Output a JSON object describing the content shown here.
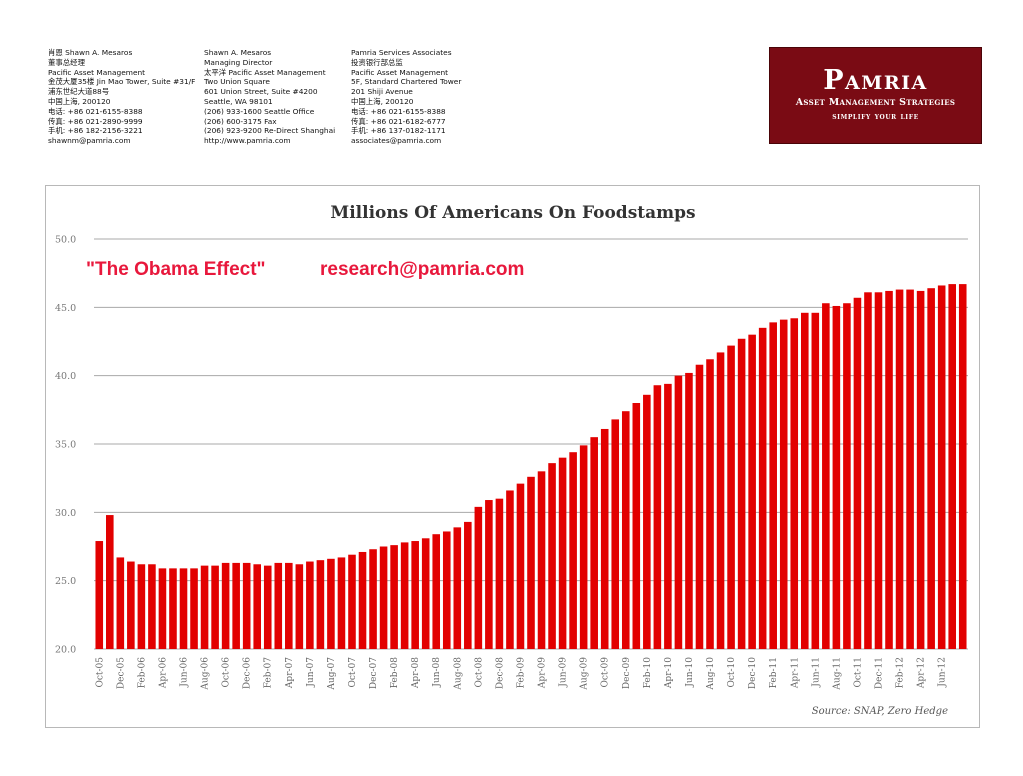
{
  "contacts": [
    {
      "lines": [
        "肖恩 Shawn A. Mesaros",
        "董事总经理",
        "Pacific Asset Management",
        "金茂大厦35楼 Jin Mao Tower, Suite #31/F",
        "浦东世纪大道88号",
        "中国上海, 200120",
        "电话: +86 021-6155-8388",
        "传真: +86 021-2890-9999",
        "手机: +86 182-2156-3221",
        "shawnm@pamria.com"
      ]
    },
    {
      "lines": [
        "Shawn A. Mesaros",
        "Managing Director",
        "太平洋 Pacific Asset Management",
        "Two Union Square",
        "601 Union Street, Suite #4200",
        "Seattle, WA 98101",
        "(206) 933-1600 Seattle Office",
        "(206) 600-3175 Fax",
        "(206) 923-9200 Re-Direct Shanghai",
        "http://www.pamria.com"
      ]
    },
    {
      "lines": [
        "Pamria Services Associates",
        "投资银行部总监",
        "Pacific Asset Management",
        "5F, Standard Chartered Tower",
        "201 Shiji Avenue",
        "中国上海, 200120",
        "电话: +86 021-6155-8388",
        "传真: +86 021-6182-6777",
        "手机: +86 137-0182-1171",
        "associates@pamria.com"
      ]
    }
  ],
  "logo": {
    "brand": "Pamria",
    "tagline1": "Asset Management Strategies",
    "tagline2": "simplify your life",
    "color": "#7a0b14"
  },
  "chart_data": {
    "type": "bar",
    "title": "Millions Of Americans On Foodstamps",
    "annotation_1": "\"The Obama Effect\"",
    "annotation_2": "research@pamria.com",
    "source": "Source: SNAP, Zero Hedge",
    "ylim": [
      20,
      50
    ],
    "yticks": [
      "20.0",
      "25.0",
      "30.0",
      "35.0",
      "40.0",
      "45.0",
      "50.0"
    ],
    "grid": true,
    "bar_color": "#e20000",
    "start": "Oct-05",
    "months": [
      "Oct-05",
      "Nov-05",
      "Dec-05",
      "Jan-06",
      "Feb-06",
      "Mar-06",
      "Apr-06",
      "May-06",
      "Jun-06",
      "Jul-06",
      "Aug-06",
      "Sep-06",
      "Oct-06",
      "Nov-06",
      "Dec-06",
      "Jan-07",
      "Feb-07",
      "Mar-07",
      "Apr-07",
      "May-07",
      "Jun-07",
      "Jul-07",
      "Aug-07",
      "Sep-07",
      "Oct-07",
      "Nov-07",
      "Dec-07",
      "Jan-08",
      "Feb-08",
      "Mar-08",
      "Apr-08",
      "May-08",
      "Jun-08",
      "Jul-08",
      "Aug-08",
      "Sep-08",
      "Oct-08",
      "Nov-08",
      "Dec-08",
      "Jan-09",
      "Feb-09",
      "Mar-09",
      "Apr-09",
      "May-09",
      "Jun-09",
      "Jul-09",
      "Aug-09",
      "Sep-09",
      "Oct-09",
      "Nov-09",
      "Dec-09",
      "Jan-10",
      "Feb-10",
      "Mar-10",
      "Apr-10",
      "May-10",
      "Jun-10",
      "Jul-10",
      "Aug-10",
      "Sep-10",
      "Oct-10",
      "Nov-10",
      "Dec-10",
      "Jan-11",
      "Feb-11",
      "Mar-11",
      "Apr-11",
      "May-11",
      "Jun-11",
      "Jul-11",
      "Aug-11",
      "Sep-11",
      "Oct-11",
      "Nov-11",
      "Dec-11",
      "Jan-12",
      "Feb-12",
      "Mar-12",
      "Apr-12",
      "May-12",
      "Jun-12",
      "Jul-12",
      "Aug-12"
    ],
    "values": [
      27.9,
      29.8,
      26.7,
      26.4,
      26.2,
      26.2,
      25.9,
      25.9,
      25.9,
      25.9,
      26.1,
      26.1,
      26.3,
      26.3,
      26.3,
      26.2,
      26.1,
      26.3,
      26.3,
      26.2,
      26.4,
      26.5,
      26.6,
      26.7,
      26.9,
      27.1,
      27.3,
      27.5,
      27.6,
      27.8,
      27.9,
      28.1,
      28.4,
      28.6,
      28.9,
      29.3,
      30.4,
      30.9,
      31.0,
      31.6,
      32.1,
      32.6,
      33.0,
      33.6,
      34.0,
      34.4,
      34.9,
      35.5,
      36.1,
      36.8,
      37.4,
      38.0,
      38.6,
      39.3,
      39.4,
      40.0,
      40.2,
      40.8,
      41.2,
      41.7,
      42.2,
      42.7,
      43.0,
      43.5,
      43.9,
      44.1,
      44.2,
      44.6,
      44.6,
      45.3,
      45.1,
      45.3,
      45.7,
      46.1,
      46.1,
      46.2,
      46.3,
      46.3,
      46.2,
      46.4,
      46.6,
      46.7,
      46.7
    ],
    "x_tick_labels": [
      "Oct-05",
      "Dec-05",
      "Feb-06",
      "Apr-06",
      "Jun-06",
      "Aug-06",
      "Oct-06",
      "Dec-06",
      "Feb-07",
      "Apr-07",
      "Jun-07",
      "Aug-07",
      "Oct-07",
      "Dec-07",
      "Feb-08",
      "Apr-08",
      "Jun-08",
      "Aug-08",
      "Oct-08",
      "Dec-08",
      "Feb-09",
      "Apr-09",
      "Jun-09",
      "Aug-09",
      "Oct-09",
      "Dec-09",
      "Feb-10",
      "Apr-10",
      "Jun-10",
      "Aug-10",
      "Oct-10",
      "Dec-10",
      "Feb-11",
      "Apr-11",
      "Jun-11",
      "Aug-11",
      "Oct-11",
      "Dec-11",
      "Feb-12",
      "Apr-12",
      "Jun-12"
    ]
  }
}
